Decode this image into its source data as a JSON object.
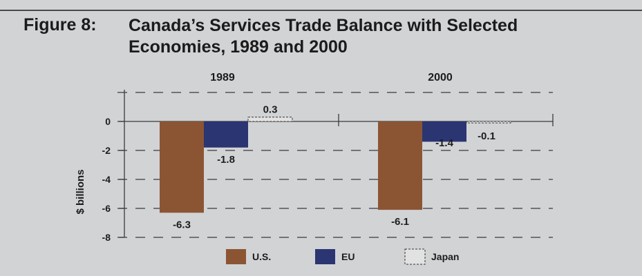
{
  "figure": {
    "label": "Figure 8:",
    "title": "Canada’s Services Trade Balance with Selected Economies, 1989 and 2000"
  },
  "colors": {
    "background": "#d2d3d5",
    "us": "#8b5534",
    "eu": "#2b3572",
    "japan": "#e2e2e2",
    "text": "#1c1c1c",
    "axis": "#3a3a3a"
  },
  "chart_data": {
    "type": "bar",
    "categories": [
      "1989",
      "2000"
    ],
    "series": [
      {
        "name": "U.S.",
        "values": [
          -6.3,
          -6.1
        ],
        "labels": [
          "-6.3",
          "-6.1"
        ]
      },
      {
        "name": "EU",
        "values": [
          -1.8,
          -1.4
        ],
        "labels": [
          "-1.8",
          "-1.4"
        ]
      },
      {
        "name": "Japan",
        "values": [
          0.3,
          -0.1
        ],
        "labels": [
          "0.3",
          "-0.1"
        ]
      }
    ],
    "ylabel": "$ billions",
    "ylim": [
      -8,
      0
    ],
    "yticks": [
      "0",
      "-2",
      "-4",
      "-6",
      "-8"
    ],
    "grid": true,
    "legend_position": "bottom"
  }
}
